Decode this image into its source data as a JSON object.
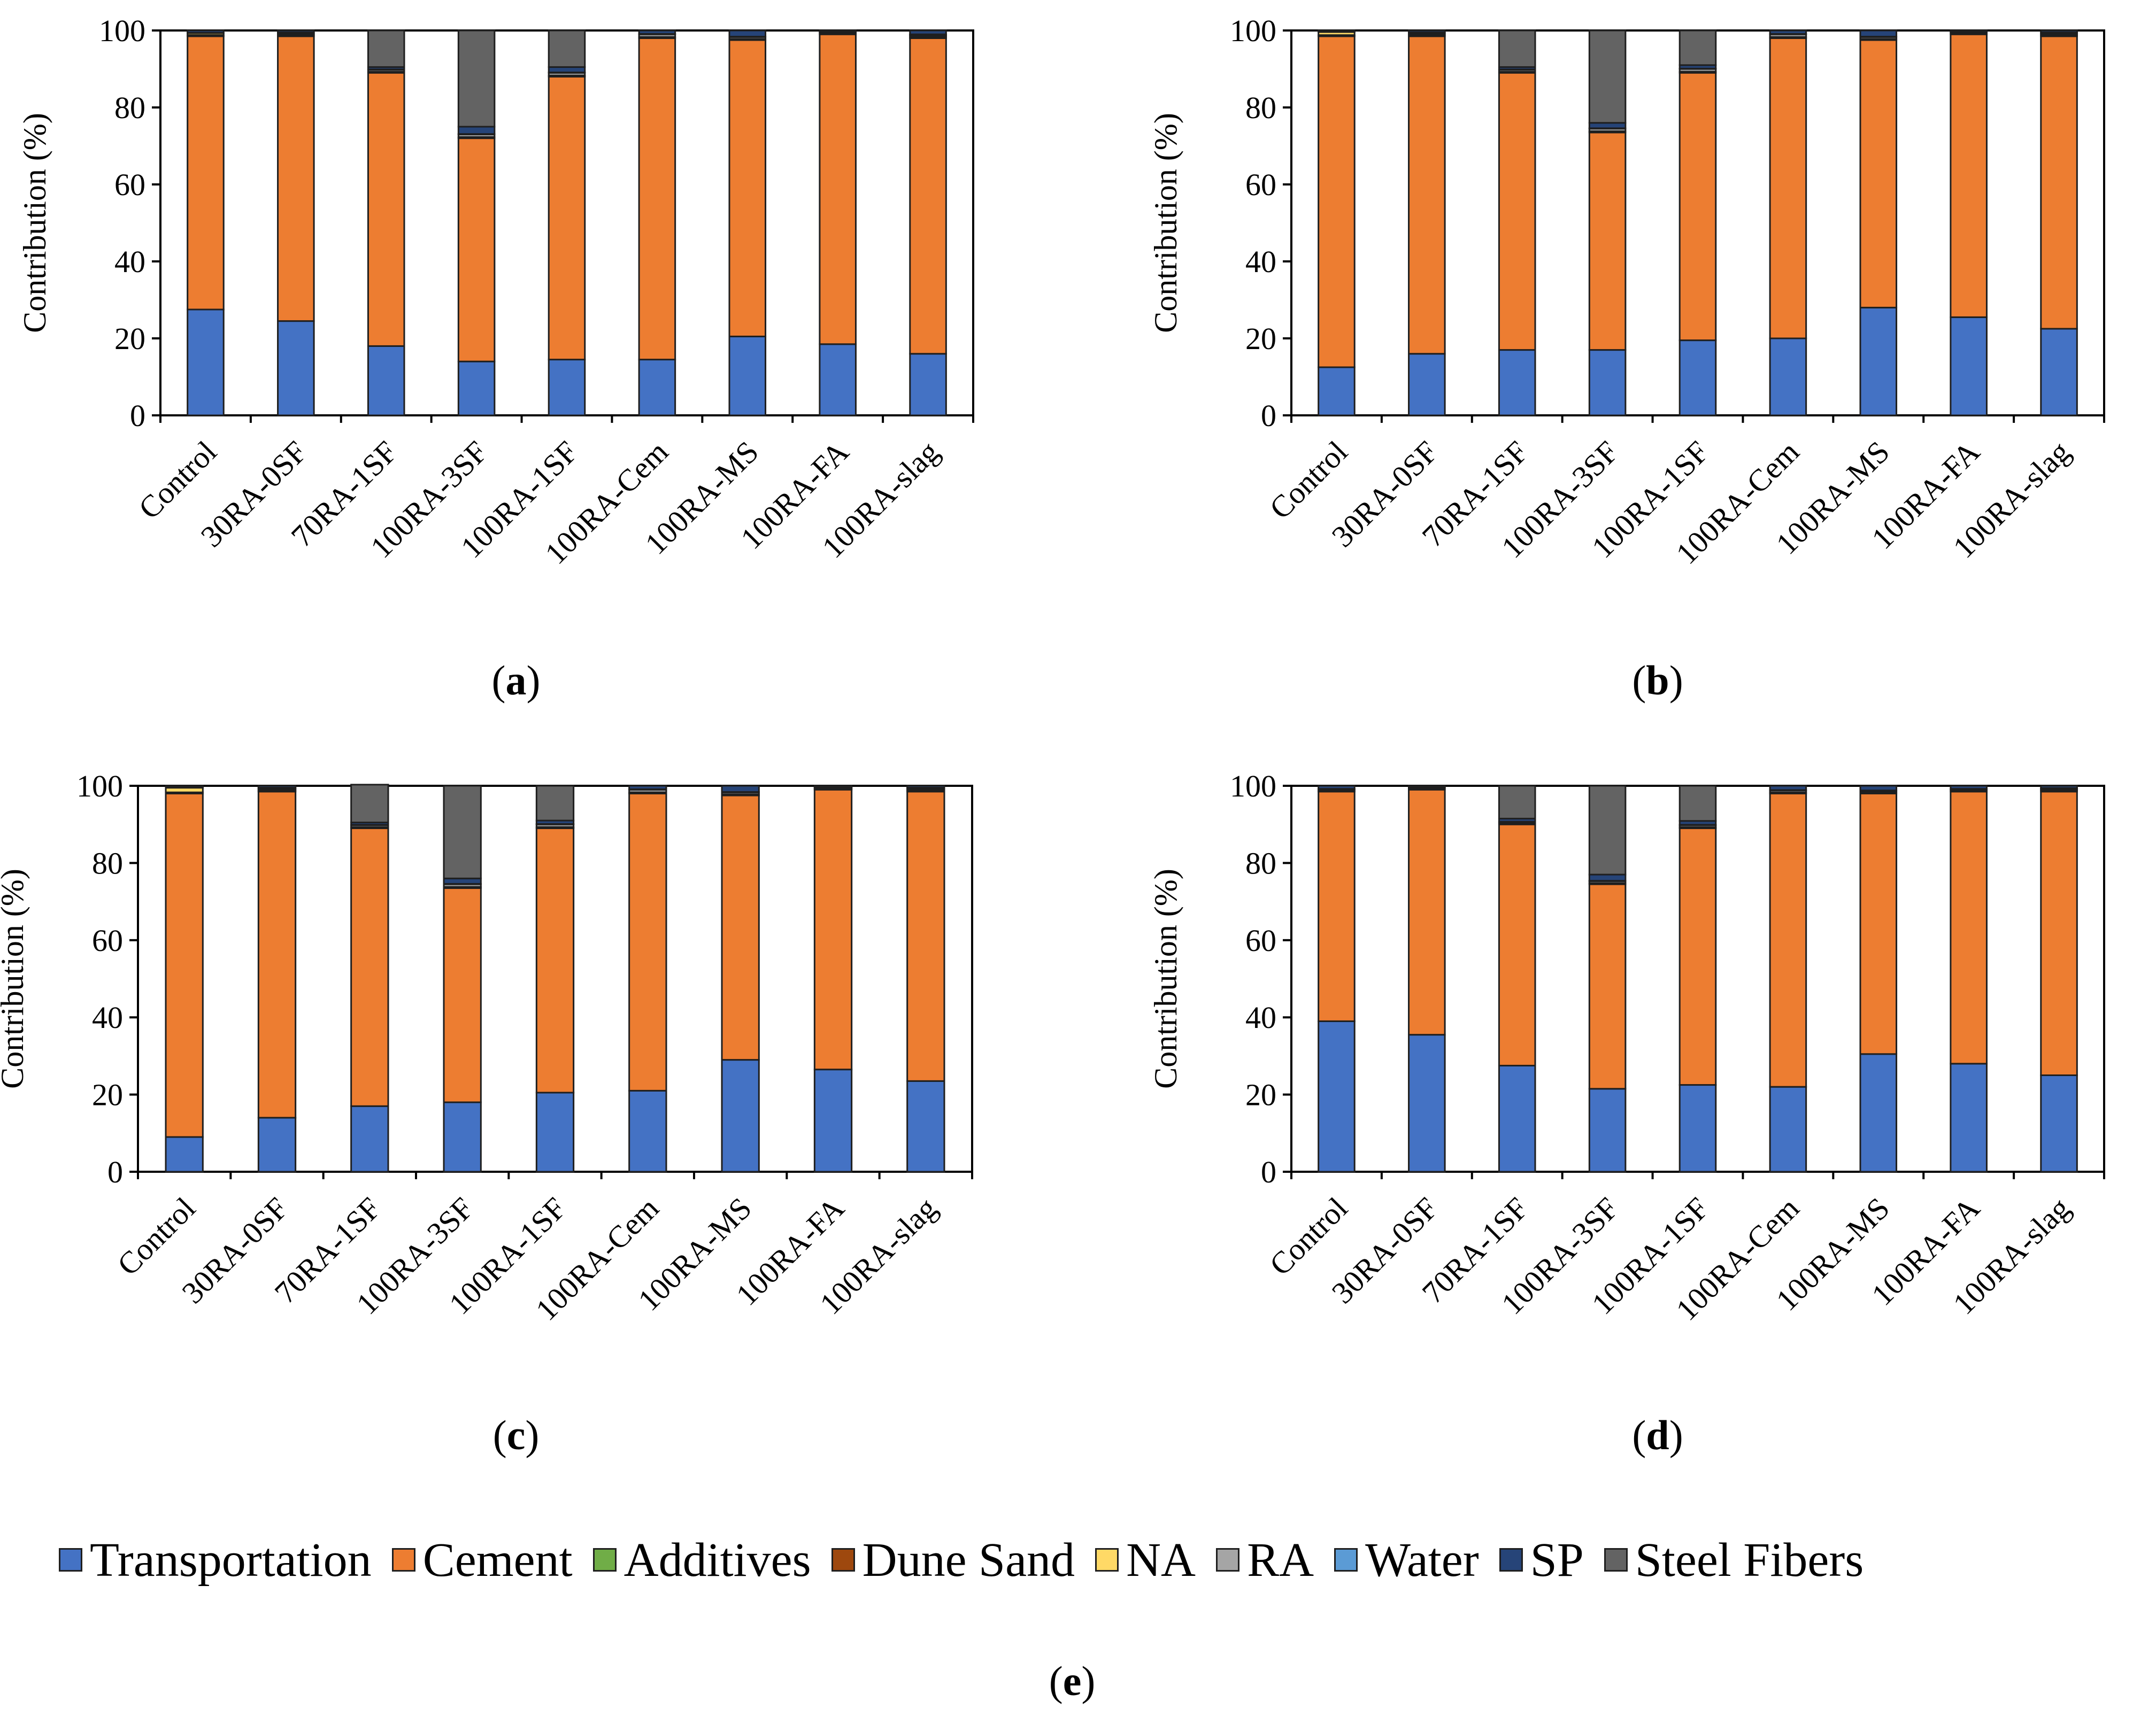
{
  "legend": {
    "items": [
      {
        "name": "Transportation",
        "color": "#4472C4"
      },
      {
        "name": "Cement",
        "color": "#ED7D31"
      },
      {
        "name": "Additives",
        "color": "#70AD47"
      },
      {
        "name": "Dune Sand",
        "color": "#9E480E"
      },
      {
        "name": "NA",
        "color": "#FFD966"
      },
      {
        "name": "RA",
        "color": "#A5A5A5"
      },
      {
        "name": "Water",
        "color": "#5B9BD5"
      },
      {
        "name": "SP",
        "color": "#264478"
      },
      {
        "name": "Steel Fibers",
        "color": "#636363"
      }
    ],
    "caption": {
      "open": "(",
      "letter": "e",
      "close": ")"
    }
  },
  "chart_data": [
    {
      "type": "bar",
      "stacked": true,
      "panel": "a",
      "ylabel": "Contribution (%)",
      "ylim": [
        0,
        100
      ],
      "yticks": [
        "0",
        "20",
        "40",
        "60",
        "80",
        "100"
      ],
      "categories": [
        "Control",
        "30RA-0SF",
        "70RA-1SF",
        "100RA-3SF",
        "100RA-1SF",
        "100RA-Cem",
        "100RA-MS",
        "100RA-FA",
        "100RA-slag"
      ],
      "series": [
        {
          "name": "Transportation",
          "values": [
            27.5,
            24.5,
            18.0,
            14.0,
            14.5,
            14.5,
            20.5,
            18.5,
            16.0
          ]
        },
        {
          "name": "Cement",
          "values": [
            71.0,
            74.0,
            71.0,
            58.0,
            73.5,
            83.5,
            77.0,
            80.5,
            82.0
          ]
        },
        {
          "name": "Additives",
          "values": [
            0,
            0,
            0,
            0,
            0,
            0,
            0,
            0,
            0
          ]
        },
        {
          "name": "Dune Sand",
          "values": [
            0.3,
            0.3,
            0.3,
            0.3,
            0.3,
            0.3,
            0.3,
            0.3,
            0.3
          ]
        },
        {
          "name": "NA",
          "values": [
            0.5,
            0.3,
            0,
            0,
            0,
            0,
            0,
            0,
            0.3
          ]
        },
        {
          "name": "RA",
          "values": [
            0,
            0.3,
            0.5,
            0.7,
            0.7,
            0.7,
            0.5,
            0.3,
            0.3
          ]
        },
        {
          "name": "Water",
          "values": [
            0.1,
            0.1,
            0.1,
            0.1,
            0.1,
            0.1,
            0.1,
            0.1,
            0.1
          ]
        },
        {
          "name": "SP",
          "values": [
            0.6,
            0.5,
            0.6,
            1.9,
            1.4,
            0.9,
            1.6,
            0.3,
            1.0
          ]
        },
        {
          "name": "Steel Fibers",
          "values": [
            0,
            0,
            9.5,
            25.0,
            9.5,
            0,
            0,
            0,
            0
          ]
        }
      ]
    },
    {
      "type": "bar",
      "stacked": true,
      "panel": "b",
      "ylabel": "Contribution (%)",
      "ylim": [
        0,
        100
      ],
      "yticks": [
        "0",
        "20",
        "40",
        "60",
        "80",
        "100"
      ],
      "categories": [
        "Control",
        "30RA-0SF",
        "70RA-1SF",
        "100RA-3SF",
        "100RA-1SF",
        "100RA-Cem",
        "100RA-MS",
        "100RA-FA",
        "100RA-slag"
      ],
      "series": [
        {
          "name": "Transportation",
          "values": [
            12.5,
            16.0,
            17.0,
            17.0,
            19.5,
            20.0,
            28.0,
            25.5,
            22.5
          ]
        },
        {
          "name": "Cement",
          "values": [
            86.0,
            82.5,
            72.0,
            56.5,
            69.5,
            78.0,
            69.5,
            73.5,
            76.0
          ]
        },
        {
          "name": "Additives",
          "values": [
            0,
            0,
            0,
            0,
            0,
            0,
            0,
            0,
            0
          ]
        },
        {
          "name": "Dune Sand",
          "values": [
            0.3,
            0.3,
            0.3,
            0.3,
            0.3,
            0.3,
            0.3,
            0.3,
            0.3
          ]
        },
        {
          "name": "NA",
          "values": [
            0.8,
            0.3,
            0,
            0,
            0,
            0,
            0,
            0,
            0.3
          ]
        },
        {
          "name": "RA",
          "values": [
            0,
            0.3,
            0.5,
            0.7,
            0.7,
            0.7,
            0.5,
            0.3,
            0.3
          ]
        },
        {
          "name": "Water",
          "values": [
            0.1,
            0.1,
            0.1,
            0.1,
            0.1,
            0.1,
            0.1,
            0.1,
            0.1
          ]
        },
        {
          "name": "SP",
          "values": [
            0.3,
            0.5,
            0.6,
            1.4,
            0.9,
            0.9,
            1.6,
            0.3,
            0.5
          ]
        },
        {
          "name": "Steel Fibers",
          "values": [
            0,
            0,
            9.5,
            24.0,
            9.0,
            0,
            0,
            0,
            0
          ]
        }
      ]
    },
    {
      "type": "bar",
      "stacked": true,
      "panel": "c",
      "ylabel": "Contribution (%)",
      "ylim": [
        0,
        100
      ],
      "yticks": [
        "0",
        "20",
        "40",
        "60",
        "80",
        "100"
      ],
      "categories": [
        "Control",
        "30RA-0SF",
        "70RA-1SF",
        "100RA-3SF",
        "100RA-1SF",
        "100RA-Cem",
        "100RA-MS",
        "100RA-FA",
        "100RA-slag"
      ],
      "series": [
        {
          "name": "Transportation",
          "values": [
            9.0,
            14.0,
            17.0,
            18.0,
            20.5,
            21.0,
            29.0,
            26.5,
            23.5
          ]
        },
        {
          "name": "Cement",
          "values": [
            89.0,
            84.5,
            72.0,
            55.5,
            68.5,
            77.0,
            68.5,
            72.5,
            75.0
          ]
        },
        {
          "name": "Additives",
          "values": [
            0,
            0,
            0,
            0,
            0,
            0,
            0,
            0,
            0
          ]
        },
        {
          "name": "Dune Sand",
          "values": [
            0.3,
            0.3,
            0.3,
            0.3,
            0.3,
            0.3,
            0.3,
            0.3,
            0.3
          ]
        },
        {
          "name": "NA",
          "values": [
            1.2,
            0.3,
            0,
            0,
            0,
            0,
            0,
            0,
            0.3
          ]
        },
        {
          "name": "RA",
          "values": [
            0,
            0.3,
            0.5,
            0.7,
            0.7,
            0.7,
            0.5,
            0.3,
            0.3
          ]
        },
        {
          "name": "Water",
          "values": [
            0.1,
            0.1,
            0.1,
            0.1,
            0.1,
            0.1,
            0.1,
            0.1,
            0.1
          ]
        },
        {
          "name": "SP",
          "values": [
            0.4,
            0.5,
            0.6,
            1.4,
            0.9,
            0.9,
            1.6,
            0.3,
            0.5
          ]
        },
        {
          "name": "Steel Fibers",
          "values": [
            0,
            0,
            9.8,
            24.0,
            9.0,
            0,
            0,
            0,
            0
          ]
        }
      ]
    },
    {
      "type": "bar",
      "stacked": true,
      "panel": "d",
      "ylabel": "Contribution (%)",
      "ylim": [
        0,
        100
      ],
      "yticks": [
        "0",
        "20",
        "40",
        "60",
        "80",
        "100"
      ],
      "categories": [
        "Control",
        "30RA-0SF",
        "70RA-1SF",
        "100RA-3SF",
        "100RA-1SF",
        "100RA-Cem",
        "100RA-MS",
        "100RA-FA",
        "100RA-slag"
      ],
      "series": [
        {
          "name": "Transportation",
          "values": [
            39.0,
            35.5,
            27.5,
            21.5,
            22.5,
            22.0,
            30.5,
            28.0,
            25.0
          ]
        },
        {
          "name": "Cement",
          "values": [
            59.5,
            63.5,
            62.5,
            53.0,
            66.5,
            76.0,
            67.5,
            70.5,
            73.5
          ]
        },
        {
          "name": "Additives",
          "values": [
            0,
            0,
            0,
            0,
            0,
            0,
            0,
            0,
            0
          ]
        },
        {
          "name": "Dune Sand",
          "values": [
            0.3,
            0.3,
            0.3,
            0.3,
            0.3,
            0.3,
            0.3,
            0.3,
            0.3
          ]
        },
        {
          "name": "NA",
          "values": [
            0.3,
            0.2,
            0,
            0,
            0,
            0,
            0,
            0,
            0.2
          ]
        },
        {
          "name": "RA",
          "values": [
            0,
            0.2,
            0.3,
            0.5,
            0.5,
            0.5,
            0.4,
            0.3,
            0.3
          ]
        },
        {
          "name": "Water",
          "values": [
            0.1,
            0.1,
            0.1,
            0.1,
            0.1,
            0.1,
            0.1,
            0.1,
            0.1
          ]
        },
        {
          "name": "SP",
          "values": [
            0.8,
            0.2,
            0.8,
            1.6,
            1.0,
            1.1,
            1.2,
            0.8,
            0.6
          ]
        },
        {
          "name": "Steel Fibers",
          "values": [
            0,
            0,
            8.5,
            23.0,
            9.1,
            0,
            0,
            0,
            0
          ]
        }
      ]
    }
  ]
}
